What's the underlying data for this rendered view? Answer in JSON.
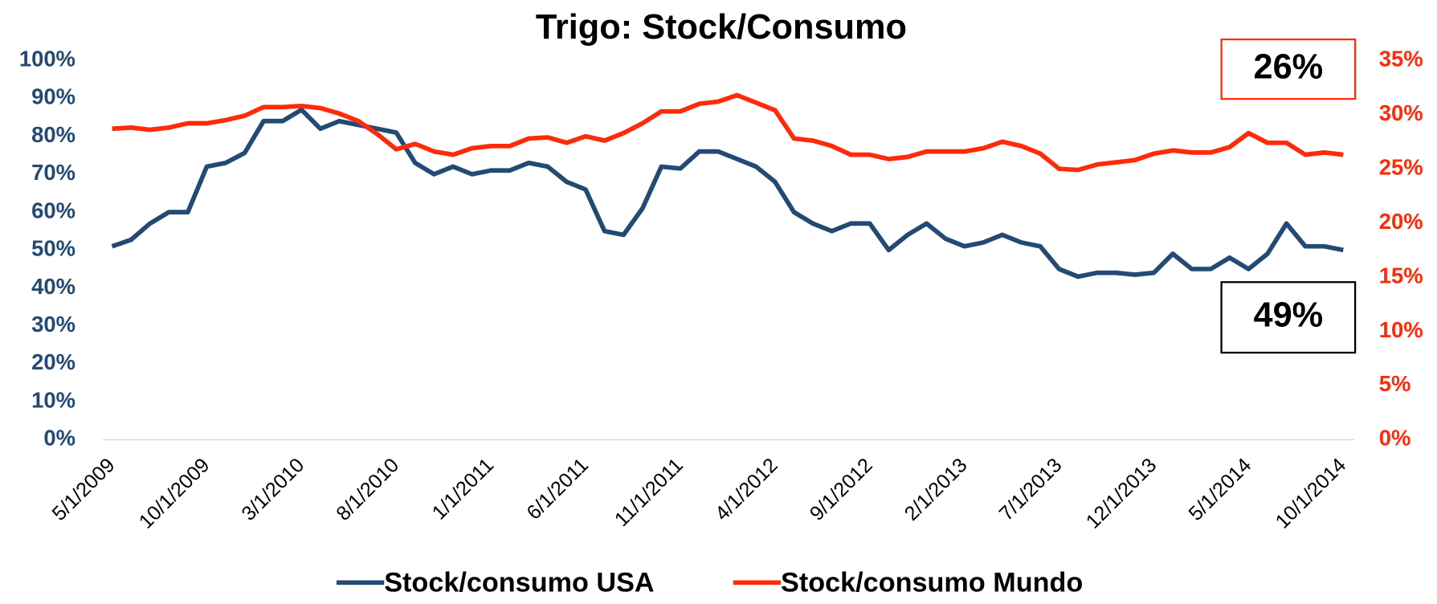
{
  "chart_data": {
    "type": "line",
    "title": "Trigo: Stock/Consumo",
    "categories": [
      "5/1/2009",
      null,
      null,
      null,
      null,
      "10/1/2009",
      null,
      null,
      null,
      null,
      "3/1/2010",
      null,
      null,
      null,
      null,
      "8/1/2010",
      null,
      null,
      null,
      null,
      "1/1/2011",
      null,
      null,
      null,
      null,
      "6/1/2011",
      null,
      null,
      null,
      null,
      "11/1/2011",
      null,
      null,
      null,
      null,
      "4/1/2012",
      null,
      null,
      null,
      null,
      "9/1/2012",
      null,
      null,
      null,
      null,
      "2/1/2013",
      null,
      null,
      null,
      null,
      "7/1/2013",
      null,
      null,
      null,
      null,
      "12/1/2013",
      null,
      null,
      null,
      null,
      "5/1/2014",
      null,
      null,
      null,
      null,
      "10/1/2014"
    ],
    "series": [
      {
        "name": "Stock/consumo USA",
        "color": "#234a74",
        "axis": "y",
        "values": [
          51,
          52.7,
          57,
          60,
          60,
          72,
          73,
          75.6,
          84,
          84,
          87,
          82,
          84,
          83,
          82,
          81,
          73,
          70,
          72,
          70,
          71,
          71,
          73,
          72,
          68,
          66,
          55,
          54,
          61,
          72,
          71.5,
          76,
          76,
          74,
          72,
          68,
          60,
          57,
          55,
          57,
          57,
          50,
          54,
          57,
          53,
          51,
          52,
          54,
          52,
          51,
          45,
          43,
          44,
          44,
          43.5,
          44,
          49,
          45,
          45,
          48,
          45,
          49,
          57,
          51,
          51,
          50
        ]
      },
      {
        "name": "Stock/consumo Mundo",
        "color": "#ff2a0a",
        "axis": "y2",
        "values": [
          28.7,
          28.8,
          28.6,
          28.8,
          29.2,
          29.2,
          29.5,
          29.9,
          30.7,
          30.7,
          30.8,
          30.6,
          30.1,
          29.4,
          28.2,
          26.8,
          27.3,
          26.6,
          26.3,
          26.9,
          27.1,
          27.1,
          27.8,
          27.9,
          27.4,
          28.0,
          27.6,
          28.3,
          29.2,
          30.3,
          30.3,
          31.0,
          31.2,
          31.8,
          31.1,
          30.4,
          27.8,
          27.6,
          27.1,
          26.3,
          26.3,
          25.9,
          26.1,
          26.6,
          26.6,
          26.6,
          26.9,
          27.5,
          27.1,
          26.4,
          25.0,
          24.9,
          25.4,
          25.6,
          25.8,
          26.4,
          26.7,
          26.5,
          26.5,
          27.0,
          28.3,
          27.4,
          27.4,
          26.3,
          26.5,
          26.3
        ]
      }
    ],
    "ylim": [
      0,
      100
    ],
    "yticks": [
      {
        "value": 0,
        "label": "0%"
      },
      {
        "value": 10,
        "label": "10%"
      },
      {
        "value": 20,
        "label": "20%"
      },
      {
        "value": 30,
        "label": "30%"
      },
      {
        "value": 40,
        "label": "40%"
      },
      {
        "value": 50,
        "label": "50%"
      },
      {
        "value": 60,
        "label": "60%"
      },
      {
        "value": 70,
        "label": "70%"
      },
      {
        "value": 80,
        "label": "80%"
      },
      {
        "value": 90,
        "label": "90%"
      },
      {
        "value": 100,
        "label": "100%"
      }
    ],
    "y2lim": [
      0,
      35
    ],
    "y2ticks": [
      {
        "value": 0,
        "label": "0%"
      },
      {
        "value": 5,
        "label": "5%"
      },
      {
        "value": 10,
        "label": "10%"
      },
      {
        "value": 15,
        "label": "15%"
      },
      {
        "value": 20,
        "label": "20%"
      },
      {
        "value": 25,
        "label": "25%"
      },
      {
        "value": 30,
        "label": "30%"
      },
      {
        "value": 35,
        "label": "35%"
      }
    ],
    "grid": false,
    "legend": "bottom",
    "annotations": [
      {
        "text": "26%",
        "color": "#ff2a0a"
      },
      {
        "text": "49%",
        "color": "#000000"
      }
    ]
  }
}
